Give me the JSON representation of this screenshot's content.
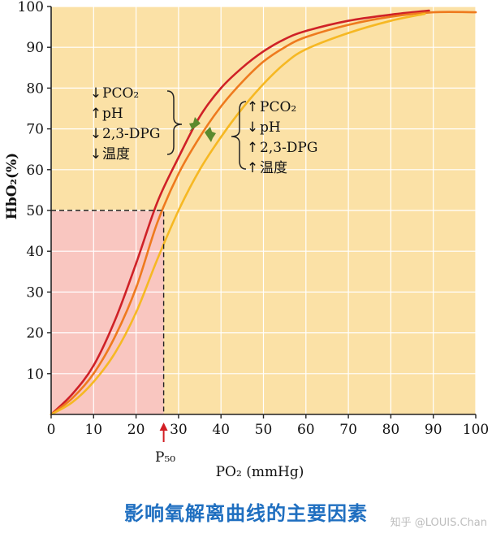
{
  "chart_data": {
    "type": "line",
    "xlabel": "PO₂ (mmHg)",
    "ylabel": "HbO₂(%)",
    "xlim": [
      0,
      100
    ],
    "ylim": [
      0,
      100
    ],
    "xticks": [
      0,
      10,
      20,
      30,
      40,
      50,
      60,
      70,
      80,
      90,
      100
    ],
    "yticks": [
      10,
      20,
      30,
      40,
      50,
      60,
      70,
      80,
      90,
      100
    ],
    "grid": true,
    "background_color": "#fbe1a6",
    "shaded_region_color": "#f9c6c0",
    "p50": {
      "label": "P₅₀",
      "x": 26.5,
      "y": 50
    },
    "series": [
      {
        "color": "#cf2127",
        "x": [
          0,
          5,
          10,
          15,
          20,
          25,
          30,
          35,
          40,
          45,
          50,
          55,
          60,
          70,
          80,
          89
        ],
        "y": [
          0,
          5,
          12,
          23,
          37,
          52,
          63,
          73,
          80,
          85,
          89,
          92,
          94,
          96.5,
          98,
          99
        ]
      },
      {
        "color": "#ee7a1e",
        "x": [
          0,
          5,
          10,
          15,
          20,
          25,
          30,
          35,
          40,
          45,
          50,
          55,
          60,
          70,
          80,
          90,
          100
        ],
        "y": [
          0,
          4,
          10,
          19,
          31,
          47,
          59,
          68,
          75.5,
          81.5,
          86.5,
          90,
          92.5,
          95.5,
          97.5,
          98.6,
          98.6
        ]
      },
      {
        "color": "#f6b823",
        "x": [
          0,
          5,
          10,
          15,
          20,
          25,
          30,
          35,
          40,
          45,
          50,
          55,
          60,
          70,
          80,
          88
        ],
        "y": [
          0,
          3,
          8,
          15,
          25,
          38,
          50,
          60,
          68,
          75,
          81,
          86,
          89.5,
          93.5,
          96.5,
          98.2
        ]
      }
    ],
    "annotations": {
      "left_group": [
        {
          "arrow": "↓",
          "text": "PCO₂"
        },
        {
          "arrow": "↑",
          "text": "pH"
        },
        {
          "arrow": "↓",
          "text": "2,3-DPG"
        },
        {
          "arrow": "↓",
          "text": "温度"
        }
      ],
      "right_group": [
        {
          "arrow": "↑",
          "text": "PCO₂"
        },
        {
          "arrow": "↓",
          "text": "pH"
        },
        {
          "arrow": "↑",
          "text": "2,3-DPG"
        },
        {
          "arrow": "↑",
          "text": "温度"
        }
      ],
      "shift_arrow_color": "#5b8a2d"
    }
  },
  "caption": "影响氧解离曲线的主要因素",
  "watermark": "知乎 @LOUIS.Chan"
}
